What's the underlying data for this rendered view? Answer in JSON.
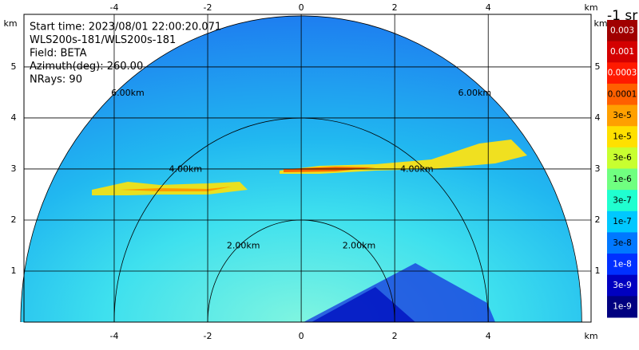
{
  "info": [
    "Start time: 2023/08/01 22:00:20.071",
    "WLS200s-181/WLS200s-181",
    "Field: BETA",
    "Azimuth(deg): 260.00",
    "NRays: 90"
  ],
  "axes": {
    "xlabel": "km",
    "ylabel": "km",
    "xlim": [
      -5.93,
      6.2
    ],
    "ylim": [
      0,
      6.03
    ],
    "xticks": [
      -4,
      -2,
      0,
      2,
      4
    ],
    "yticks": [
      1,
      2,
      3,
      4,
      5
    ]
  },
  "rings": [
    {
      "range": 2,
      "label": "2.00km"
    },
    {
      "range": 4,
      "label": "4.00km"
    },
    {
      "range": 6,
      "label": "6.00km"
    }
  ],
  "colorbar": {
    "unit": "-1 sr",
    "labels": [
      "0.003",
      "0.001",
      "0.0003",
      "0.0001",
      "3e-5",
      "1e-5",
      "3e-6",
      "1e-6",
      "3e-7",
      "1e-7",
      "3e-8",
      "1e-8",
      "3e-9",
      "1e-9"
    ],
    "colors": [
      "#a00000",
      "#d40000",
      "#ff1a00",
      "#ff6000",
      "#ffa000",
      "#ffe000",
      "#c8ff30",
      "#70ff80",
      "#20ffd0",
      "#00c8ff",
      "#0078ff",
      "#0030ff",
      "#0000c0",
      "#000080"
    ]
  }
}
